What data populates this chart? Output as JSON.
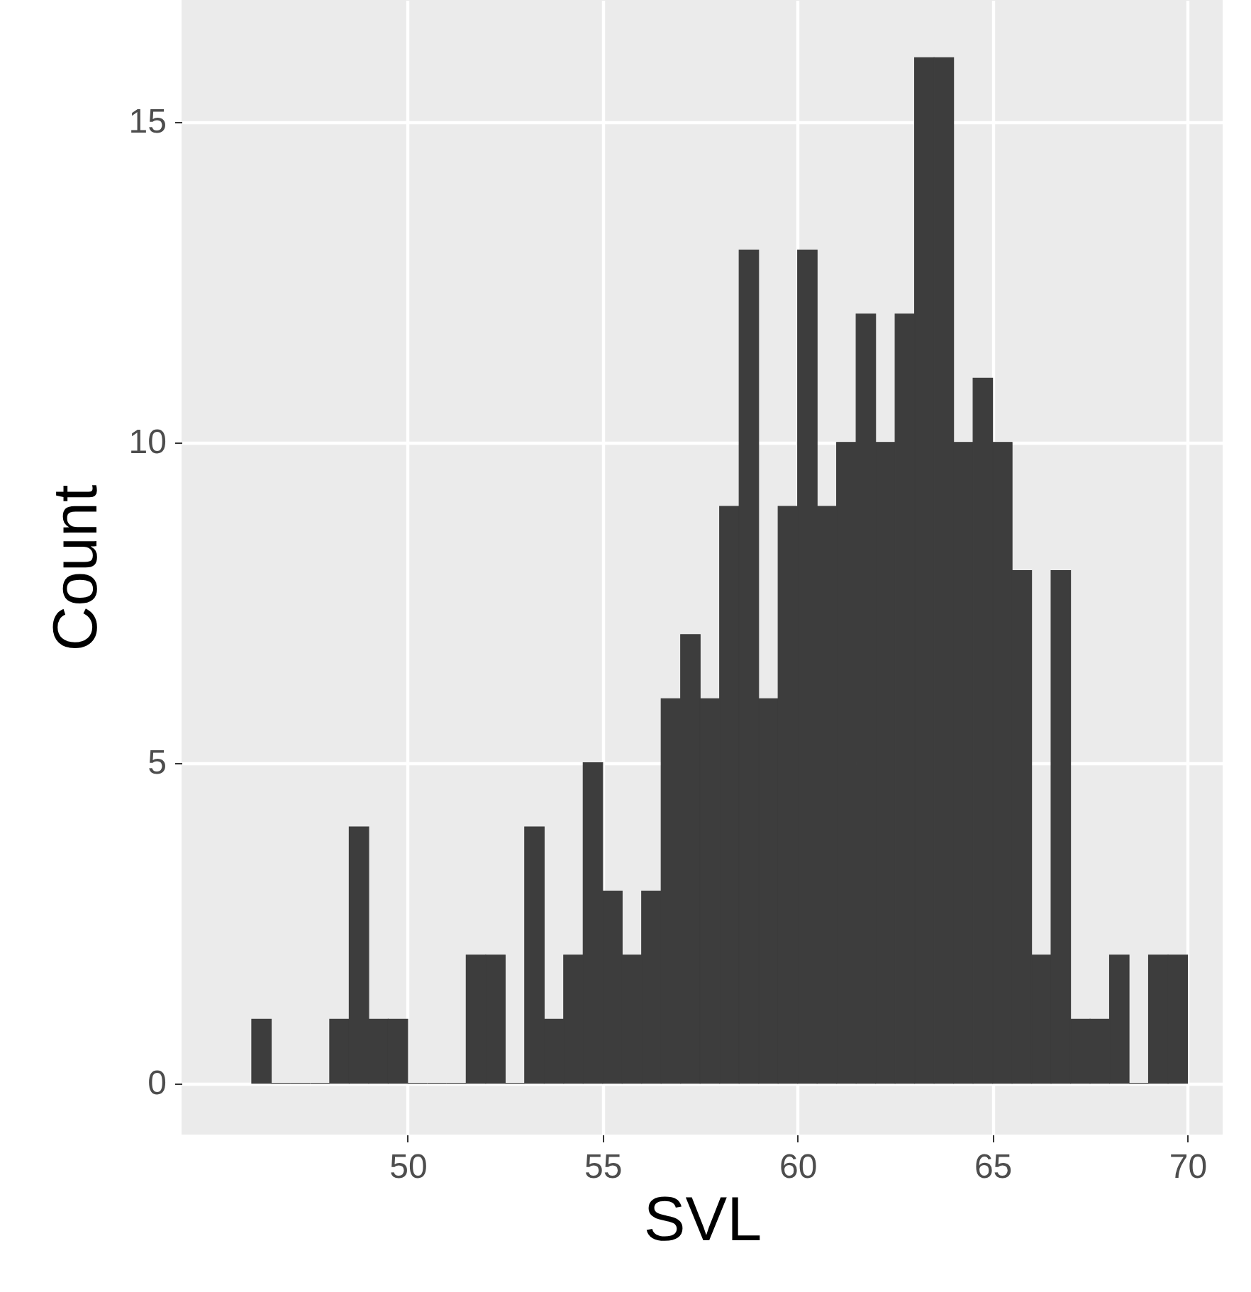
{
  "chart_data": {
    "type": "histogram",
    "xlabel": "SVL",
    "ylabel": "Count",
    "color": "#3d3d3d",
    "bins": [
      46,
      46.5,
      47,
      47.5,
      48,
      48.5,
      49,
      49.5,
      50,
      50.5,
      51,
      51.5,
      52,
      52.5,
      53,
      53.5,
      54,
      54.5,
      55,
      55.5,
      56,
      56.5,
      57,
      57.5,
      58,
      58.5,
      59,
      59.5,
      60,
      60.5,
      61,
      61.5,
      62,
      62.5,
      63,
      63.5,
      64,
      64.5,
      65,
      65.5,
      66,
      66.5,
      67,
      67.5,
      68,
      68.5,
      69,
      69.5,
      70
    ],
    "values": [
      1,
      0,
      0,
      0,
      1,
      4,
      1,
      1,
      0,
      0,
      0,
      2,
      2,
      0,
      4,
      1,
      2,
      5,
      3,
      2,
      3,
      6,
      7,
      6,
      9,
      13,
      6,
      9,
      13,
      9,
      10,
      12,
      10,
      12,
      16,
      16,
      10,
      11,
      10,
      8,
      2,
      8,
      1,
      1,
      2,
      0,
      2,
      2
    ],
    "xlim": [
      44.2,
      70.9
    ],
    "xticks": [
      50,
      55,
      60,
      65,
      70
    ],
    "ylim": [
      -0.8,
      16.9
    ],
    "yticks": [
      0,
      5,
      10,
      15
    ],
    "grid": true
  }
}
